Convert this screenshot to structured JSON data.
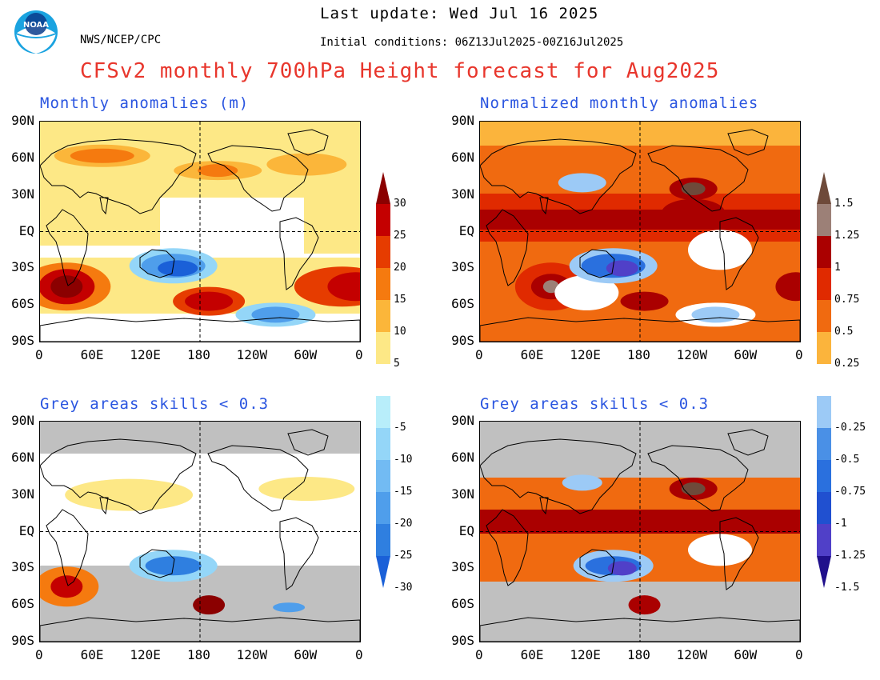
{
  "header": {
    "last_update": "Last update: Wed Jul 16 2025",
    "initial_conditions": "Initial conditions: 06Z13Jul2025-00Z16Jul2025",
    "agency": "NWS/NCEP/CPC",
    "logo_text": "NOAA",
    "title": "CFSv2 monthly 700hPa Height forecast for Aug2025"
  },
  "panels": {
    "top_left_title": "Monthly anomalies (m)",
    "top_right_title": "Normalized monthly anomalies",
    "bottom_left_title": "Grey areas skills < 0.3",
    "bottom_right_title": "Grey areas skills < 0.3"
  },
  "axes": {
    "lat_ticks": [
      "90N",
      "60N",
      "30N",
      "EQ",
      "30S",
      "60S",
      "90S"
    ],
    "lon_ticks": [
      "0",
      "60E",
      "120E",
      "180",
      "120W",
      "60W",
      "0"
    ]
  },
  "colorbar_left": {
    "labels": [
      "30",
      "25",
      "20",
      "15",
      "10",
      "5",
      "-5",
      "-10",
      "-15",
      "-20",
      "-25",
      "-30"
    ],
    "colors": {
      "pos": [
        "#8b0000",
        "#c40000",
        "#e63c00",
        "#f57a0f",
        "#fbb63a",
        "#fde886"
      ],
      "neg": [
        "#b8eefa",
        "#94d6f8",
        "#72bbf3",
        "#4f9eeb",
        "#2f7fe0",
        "#1a60d8"
      ]
    }
  },
  "colorbar_right": {
    "labels": [
      "1.5",
      "1.25",
      "1",
      "0.75",
      "0.5",
      "0.25",
      "-0.25",
      "-0.5",
      "-0.75",
      "-1",
      "-1.25",
      "-1.5"
    ],
    "colors": {
      "pos": [
        "#6e4a3a",
        "#9c8077",
        "#aa0000",
        "#e02a00",
        "#f06a10",
        "#fbb43c"
      ],
      "neg": [
        "#9ccaf6",
        "#4a90e6",
        "#2a70de",
        "#2050d0",
        "#5040c8",
        "#20108c"
      ]
    }
  },
  "colors": {
    "title_red": "#e8362c",
    "panel_title_blue": "#2a55e0",
    "grey_mask": "#c0c0c0"
  }
}
